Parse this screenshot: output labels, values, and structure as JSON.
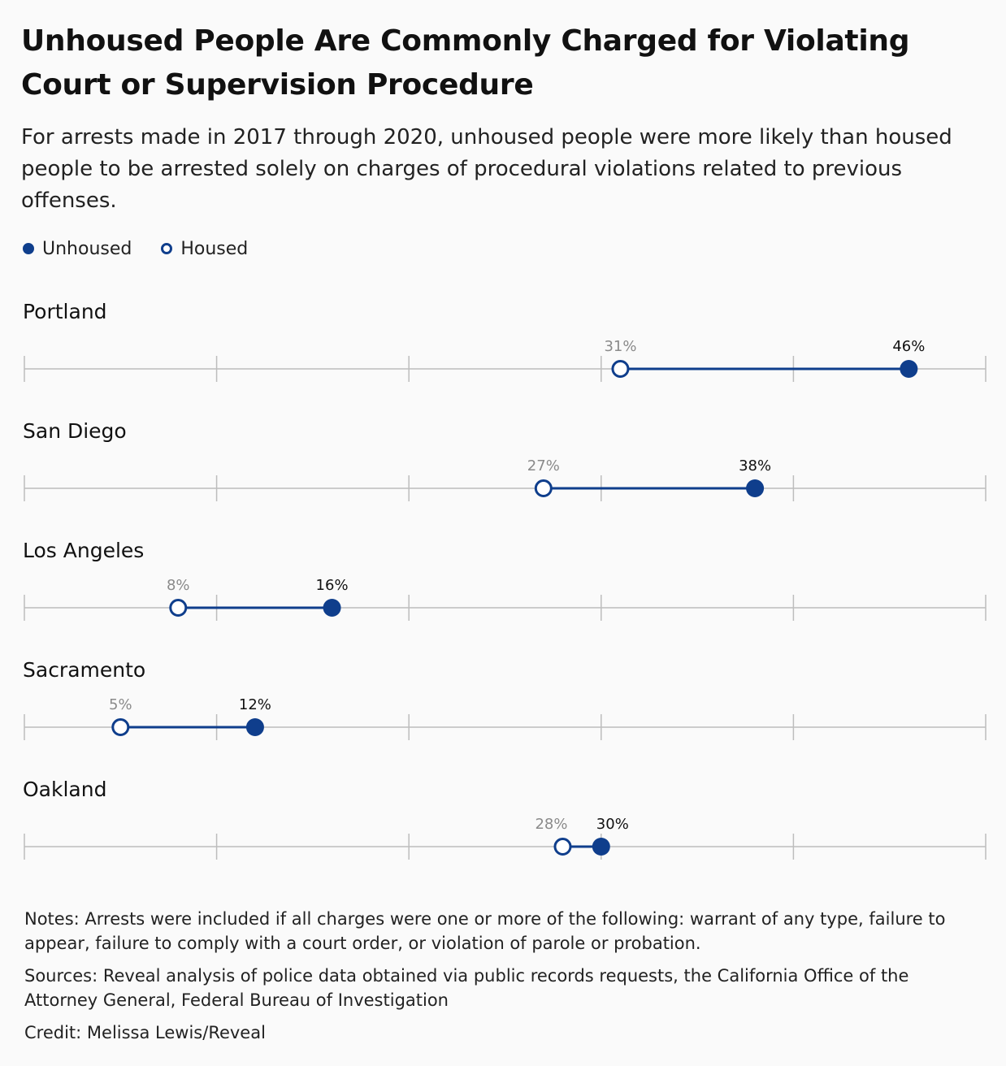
{
  "header": {
    "title": "Unhoused People Are Commonly Charged for Violating Court or Supervision Procedure",
    "subtitle": "For arrests made in 2017 through 2020, unhoused people were more likely than housed people to be arrested solely on charges of procedural violations related to previous offenses."
  },
  "legend": {
    "unhoused": "Unhoused",
    "housed": "Housed"
  },
  "colors": {
    "accent": "#0f3e8c",
    "axis": "#bdbdbd",
    "housed_label": "#8a8a8a"
  },
  "chart_data": {
    "type": "dot-plot",
    "xlim": [
      0,
      50
    ],
    "value_suffix": "%",
    "series": [
      {
        "name": "Unhoused",
        "values": [
          46,
          38,
          16,
          12,
          30
        ]
      },
      {
        "name": "Housed",
        "values": [
          31,
          27,
          8,
          5,
          28
        ]
      }
    ],
    "categories": [
      "Portland",
      "San Diego",
      "Los Angeles",
      "Sacramento",
      "Oakland"
    ],
    "rows": [
      {
        "city": "Portland",
        "housed": 31,
        "unhoused": 46,
        "housed_label": "31%",
        "unhoused_label": "46%"
      },
      {
        "city": "San Diego",
        "housed": 27,
        "unhoused": 38,
        "housed_label": "27%",
        "unhoused_label": "38%"
      },
      {
        "city": "Los Angeles",
        "housed": 8,
        "unhoused": 16,
        "housed_label": "8%",
        "unhoused_label": "16%"
      },
      {
        "city": "Sacramento",
        "housed": 5,
        "unhoused": 12,
        "housed_label": "5%",
        "unhoused_label": "12%"
      },
      {
        "city": "Oakland",
        "housed": 28,
        "unhoused": 30,
        "housed_label": "28%",
        "unhoused_label": "30%"
      }
    ],
    "grid": true,
    "legend_position": "top-left"
  },
  "footer": {
    "notes": "Notes: Arrests were included if all charges were one or more of the following: warrant of any type, failure to appear, failure to comply with a court order, or violation of parole or probation.",
    "sources": "Sources: Reveal analysis of police data obtained via public records requests, the California Office of the Attorney General, Federal Bureau of Investigation",
    "credit": "Credit: Melissa Lewis/Reveal"
  }
}
